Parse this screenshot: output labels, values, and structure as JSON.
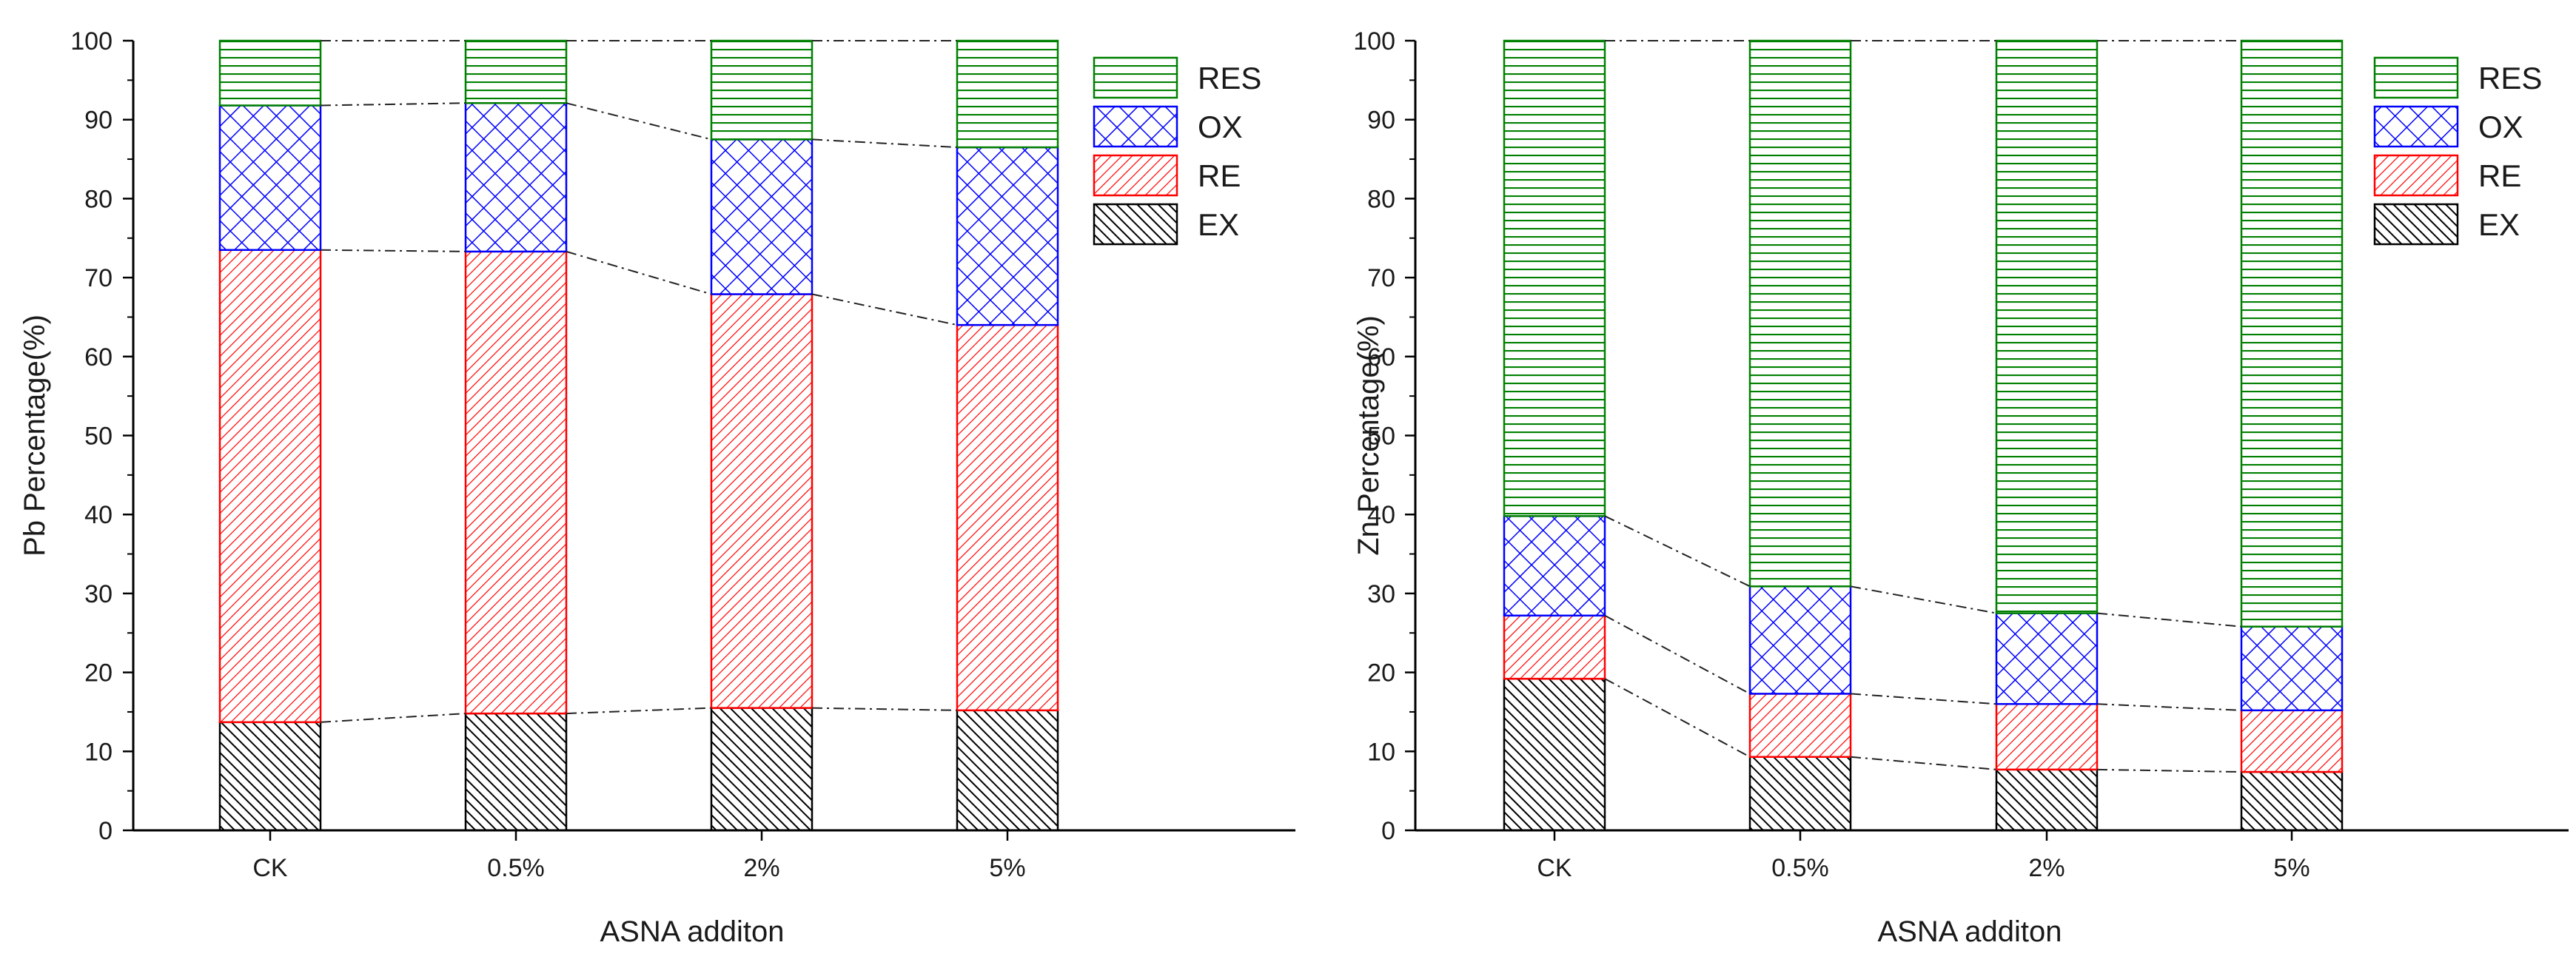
{
  "chart_data": [
    {
      "type": "bar",
      "stacked": true,
      "categories": [
        "CK",
        "0.5%",
        "2%",
        "5%"
      ],
      "series": [
        {
          "name": "EX",
          "values": [
            13.7,
            14.8,
            15.5,
            15.2
          ]
        },
        {
          "name": "RE",
          "values": [
            59.8,
            58.5,
            52.4,
            48.8
          ]
        },
        {
          "name": "OX",
          "values": [
            18.3,
            18.8,
            19.6,
            22.5
          ]
        },
        {
          "name": "RES",
          "values": [
            8.2,
            7.9,
            12.5,
            13.5
          ]
        }
      ],
      "xlabel": "ASNA  additon",
      "ylabel": "Pb Percentage(%)",
      "ylim": [
        0,
        100
      ],
      "yticks": [
        0,
        10,
        20,
        30,
        40,
        50,
        60,
        70,
        80,
        90,
        100
      ],
      "legend": "top-right",
      "grid": false,
      "connector_lines": true
    },
    {
      "type": "bar",
      "stacked": true,
      "categories": [
        "CK",
        "0.5%",
        "2%",
        "5%"
      ],
      "series": [
        {
          "name": "EX",
          "values": [
            19.2,
            9.3,
            7.7,
            7.4
          ]
        },
        {
          "name": "RE",
          "values": [
            8.0,
            8.0,
            8.3,
            7.8
          ]
        },
        {
          "name": "OX",
          "values": [
            12.6,
            13.6,
            11.5,
            10.6
          ]
        },
        {
          "name": "RES",
          "values": [
            60.2,
            69.1,
            72.5,
            74.2
          ]
        }
      ],
      "xlabel": "ASNA  additon",
      "ylabel": "Zn Percentage(%)",
      "ylim": [
        0,
        100
      ],
      "yticks": [
        0,
        10,
        20,
        30,
        40,
        50,
        60,
        70,
        80,
        90,
        100
      ],
      "legend": "top-right",
      "grid": false,
      "connector_lines": true
    }
  ],
  "series_style": {
    "EX": {
      "stroke": "#000000",
      "pattern": "diag-dense"
    },
    "RE": {
      "stroke": "#ff0000",
      "pattern": "diag-red"
    },
    "OX": {
      "stroke": "#0000ff",
      "pattern": "crosshatch-blue"
    },
    "RES": {
      "stroke": "#008000",
      "pattern": "horiz-green"
    }
  }
}
